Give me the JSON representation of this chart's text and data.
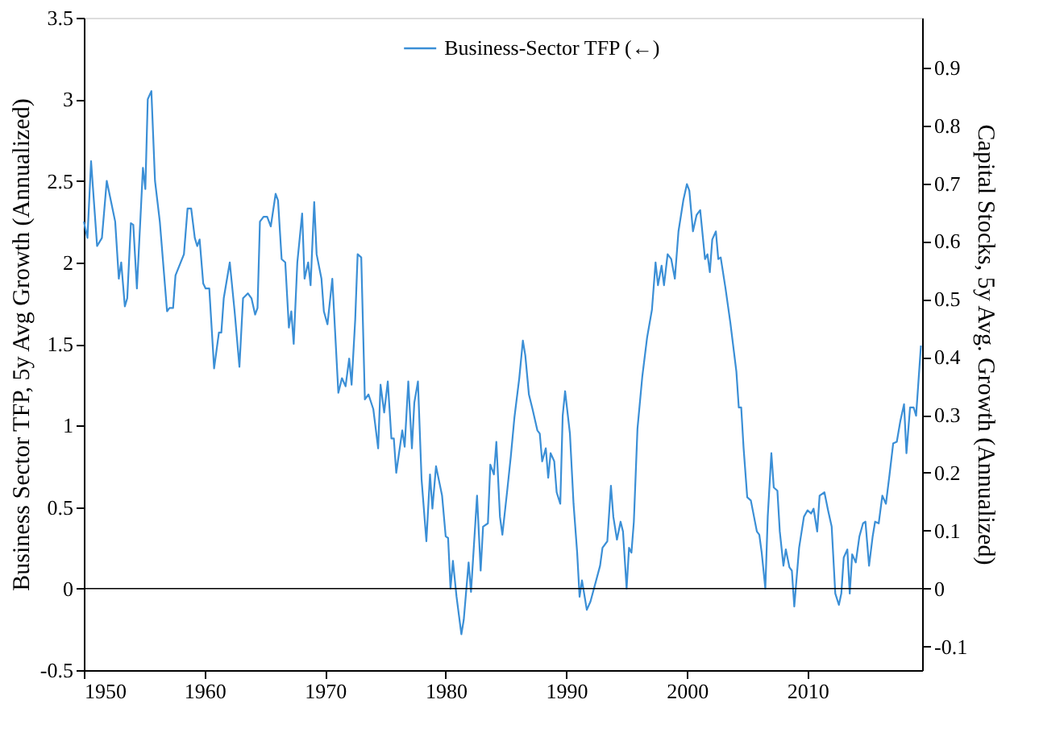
{
  "chart_data": {
    "type": "line",
    "xlabel": null,
    "ylabel": "Business Sector TFP, 5y Avg Growth (Annualized)",
    "y2label": "Capital Stocks, 5y Avg. Growth (Annualized)",
    "xlim": [
      1950,
      2019.5
    ],
    "xticks": [
      1950,
      1960,
      1970,
      1980,
      1990,
      2000,
      2010
    ],
    "ylim": [
      -0.5,
      3.5
    ],
    "yticks": [
      -0.5,
      0,
      0.5,
      1,
      1.5,
      2,
      2.5,
      3,
      3.5
    ],
    "y2lim": [
      -0.141,
      0.986
    ],
    "y2ticks": [
      -0.1,
      0,
      0.1,
      0.2,
      0.3,
      0.4,
      0.5,
      0.6,
      0.7,
      0.8,
      0.9
    ],
    "grid": false,
    "legend": "top",
    "line_style": "solid",
    "marker": "none",
    "ref_lines": [
      {
        "axis": "y",
        "value": 0,
        "color": "#000000"
      }
    ],
    "series": [
      {
        "name": "Business-Sector TFP (←)",
        "color": "#3b8fd6",
        "x": [
          1950,
          1950.3,
          1950.6,
          1951.1,
          1951.5,
          1951.9,
          1952.6,
          1952.9,
          1953.1,
          1953.4,
          1953.6,
          1953.9,
          1954.1,
          1954.4,
          1954.7,
          1954.9,
          1955.1,
          1955.3,
          1955.6,
          1955.9,
          1956.3,
          1956.9,
          1957.1,
          1957.4,
          1957.6,
          1958.3,
          1958.6,
          1958.9,
          1959.2,
          1959.4,
          1959.6,
          1959.9,
          1960.1,
          1960.4,
          1960.8,
          1961.2,
          1961.4,
          1961.6,
          1962.1,
          1962.5,
          1962.9,
          1963.2,
          1963.6,
          1963.9,
          1964.2,
          1964.4,
          1964.6,
          1964.9,
          1965.2,
          1965.5,
          1965.9,
          1966.1,
          1966.4,
          1966.7,
          1967.0,
          1967.2,
          1967.4,
          1967.7,
          1968.1,
          1968.3,
          1968.6,
          1968.8,
          1969.1,
          1969.3,
          1969.7,
          1969.9,
          1970.2,
          1970.6,
          1971.1,
          1971.4,
          1971.7,
          1972.0,
          1972.2,
          1972.5,
          1972.7,
          1973.0,
          1973.3,
          1973.6,
          1974.0,
          1974.4,
          1974.6,
          1974.9,
          1975.2,
          1975.5,
          1975.7,
          1975.9,
          1976.4,
          1976.6,
          1976.9,
          1977.2,
          1977.4,
          1977.7,
          1978.0,
          1978.4,
          1978.7,
          1978.9,
          1979.2,
          1979.7,
          1980.0,
          1980.2,
          1980.4,
          1980.6,
          1980.9,
          1981.3,
          1981.5,
          1981.9,
          1982.1,
          1982.6,
          1982.9,
          1983.1,
          1983.5,
          1983.7,
          1984.0,
          1984.2,
          1984.5,
          1984.7,
          1985.1,
          1985.4,
          1985.7,
          1986.1,
          1986.4,
          1986.6,
          1986.9,
          1987.2,
          1987.6,
          1987.8,
          1988.0,
          1988.3,
          1988.5,
          1988.7,
          1989.0,
          1989.2,
          1989.5,
          1989.7,
          1989.9,
          1990.3,
          1990.6,
          1990.9,
          1991.1,
          1991.3,
          1991.7,
          1992.0,
          1992.4,
          1992.8,
          1993.0,
          1993.4,
          1993.7,
          1993.9,
          1994.2,
          1994.5,
          1994.7,
          1995.0,
          1995.2,
          1995.4,
          1995.6,
          1995.9,
          1996.3,
          1996.7,
          1997.1,
          1997.4,
          1997.6,
          1997.9,
          1998.1,
          1998.4,
          1998.7,
          1999.0,
          1999.3,
          1999.7,
          2000.0,
          2000.2,
          2000.5,
          2000.8,
          2001.1,
          2001.5,
          2001.7,
          2001.9,
          2002.1,
          2002.4,
          2002.6,
          2002.8,
          2003.2,
          2003.6,
          2004.1,
          2004.3,
          2004.5,
          2004.7,
          2005.0,
          2005.3,
          2005.8,
          2006.0,
          2006.2,
          2006.5,
          2006.7,
          2007.0,
          2007.2,
          2007.5,
          2007.7,
          2008.0,
          2008.2,
          2008.5,
          2008.7,
          2008.9,
          2009.3,
          2009.7,
          2010.0,
          2010.3,
          2010.5,
          2010.8,
          2011.0,
          2011.4,
          2011.7,
          2012.0,
          2012.3,
          2012.6,
          2012.8,
          2013.0,
          2013.3,
          2013.5,
          2013.7,
          2014.0,
          2014.3,
          2014.6,
          2014.8,
          2015.1,
          2015.4,
          2015.6,
          2015.9,
          2016.2,
          2016.5,
          2016.8,
          2017.1,
          2017.4,
          2017.7,
          2018.0,
          2018.2,
          2018.5,
          2018.8,
          2019.0,
          2019.4
        ],
        "values": [
          2.25,
          2.15,
          2.62,
          2.1,
          2.15,
          2.5,
          2.25,
          1.9,
          2.0,
          1.73,
          1.78,
          2.24,
          2.23,
          1.84,
          2.28,
          2.58,
          2.45,
          3.0,
          3.05,
          2.5,
          2.25,
          1.7,
          1.72,
          1.72,
          1.92,
          2.05,
          2.33,
          2.33,
          2.15,
          2.1,
          2.14,
          1.87,
          1.84,
          1.84,
          1.35,
          1.57,
          1.57,
          1.78,
          2.0,
          1.7,
          1.36,
          1.78,
          1.81,
          1.78,
          1.68,
          1.72,
          2.25,
          2.28,
          2.28,
          2.22,
          2.42,
          2.38,
          2.02,
          2.0,
          1.6,
          1.7,
          1.5,
          2.0,
          2.3,
          1.9,
          2.0,
          1.86,
          2.37,
          2.05,
          1.9,
          1.7,
          1.62,
          1.9,
          1.2,
          1.29,
          1.24,
          1.41,
          1.25,
          1.65,
          2.05,
          2.03,
          1.16,
          1.19,
          1.1,
          0.86,
          1.25,
          1.08,
          1.27,
          0.92,
          0.92,
          0.71,
          0.97,
          0.87,
          1.27,
          0.86,
          1.14,
          1.27,
          0.67,
          0.29,
          0.7,
          0.49,
          0.75,
          0.57,
          0.32,
          0.31,
          0.0,
          0.17,
          -0.05,
          -0.28,
          -0.19,
          0.16,
          -0.02,
          0.57,
          0.11,
          0.38,
          0.4,
          0.76,
          0.7,
          0.9,
          0.44,
          0.33,
          0.6,
          0.81,
          1.05,
          1.29,
          1.52,
          1.43,
          1.19,
          1.1,
          0.97,
          0.95,
          0.78,
          0.86,
          0.68,
          0.83,
          0.78,
          0.59,
          0.52,
          1.06,
          1.21,
          0.95,
          0.52,
          0.22,
          -0.05,
          0.05,
          -0.13,
          -0.08,
          0.03,
          0.14,
          0.25,
          0.29,
          0.63,
          0.44,
          0.3,
          0.41,
          0.35,
          0.0,
          0.25,
          0.22,
          0.41,
          0.98,
          1.3,
          1.54,
          1.71,
          2.0,
          1.86,
          1.98,
          1.86,
          2.05,
          2.02,
          1.9,
          2.19,
          2.38,
          2.48,
          2.44,
          2.19,
          2.29,
          2.32,
          2.02,
          2.05,
          1.94,
          2.14,
          2.19,
          2.02,
          2.03,
          1.84,
          1.63,
          1.33,
          1.11,
          1.11,
          0.86,
          0.56,
          0.54,
          0.35,
          0.33,
          0.22,
          0.0,
          0.44,
          0.83,
          0.62,
          0.6,
          0.35,
          0.14,
          0.24,
          0.13,
          0.11,
          -0.11,
          0.25,
          0.44,
          0.48,
          0.46,
          0.49,
          0.35,
          0.57,
          0.59,
          0.48,
          0.38,
          -0.03,
          -0.1,
          -0.03,
          0.19,
          0.24,
          -0.03,
          0.21,
          0.16,
          0.32,
          0.4,
          0.41,
          0.14,
          0.32,
          0.41,
          0.4,
          0.57,
          0.52,
          0.7,
          0.89,
          0.9,
          1.03,
          1.13,
          0.83,
          1.11,
          1.11,
          1.06,
          1.49
        ]
      }
    ]
  }
}
